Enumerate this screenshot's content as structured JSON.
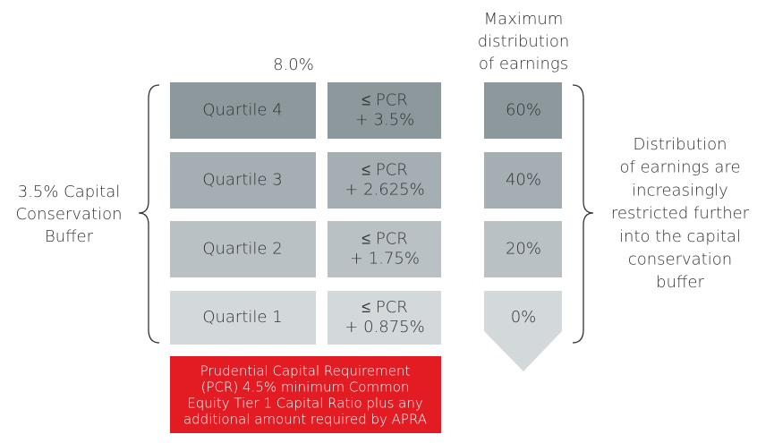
{
  "top_label": "8.0%",
  "header": [
    "Maximum",
    "distribution",
    "of earnings"
  ],
  "left_label": [
    "3.5% Capital",
    "Conservation",
    "Buffer"
  ],
  "right_label": [
    "Distribution",
    "of earnings are",
    "increasingly",
    "restricted further",
    "into the capital",
    "conservation",
    "buffer"
  ],
  "rows": [
    {
      "quartile": "Quartile 4",
      "pcr": [
        "≤ PCR",
        "+ 3.5%"
      ],
      "distribution": "60%"
    },
    {
      "quartile": "Quartile 3",
      "pcr": [
        "≤ PCR",
        "+ 2.625%"
      ],
      "distribution": "40%"
    },
    {
      "quartile": "Quartile 2",
      "pcr": [
        "≤ PCR",
        "+ 1.75%"
      ],
      "distribution": "20%"
    },
    {
      "quartile": "Quartile 1",
      "pcr": [
        "≤ PCR",
        "+ 0.875%"
      ],
      "distribution": "0%"
    }
  ],
  "footer": [
    "Prudential Capital Requirement",
    "(PCR) 4.5% minimum Common",
    "Equity Tier 1 Capital Ratio plus any",
    "additional amount required by APRA"
  ]
}
